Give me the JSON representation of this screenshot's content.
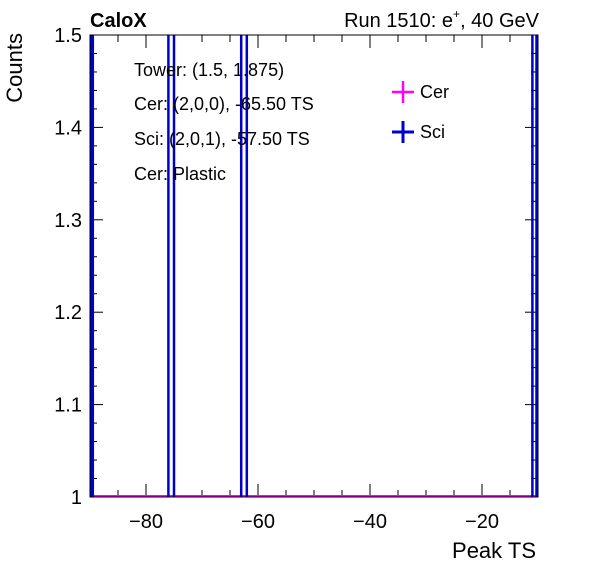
{
  "header": {
    "left_title": "CaloX",
    "right_title_prefix": "Run 1510: e",
    "right_title_sup": "+",
    "right_title_suffix": ", 40 GeV"
  },
  "annotations": [
    "Tower: (1.5, 1.875)",
    "Cer: (2,0,0), -65.50 TS",
    "Sci: (2,0,1), -57.50 TS",
    "Cer: Plastic"
  ],
  "chart_data": {
    "type": "bar",
    "title": "",
    "xlabel": "Peak TS",
    "ylabel": "Counts",
    "xlim": [
      -90,
      -10
    ],
    "ylim": [
      1,
      1.5
    ],
    "xticks": [
      -80,
      -60,
      -40,
      -20
    ],
    "xtick_labels": [
      "−80",
      "−60",
      "−40",
      "−20"
    ],
    "yticks": [
      1,
      1.1,
      1.2,
      1.3,
      1.4,
      1.5
    ],
    "ytick_labels": [
      "1",
      "1.1",
      "1.2",
      "1.3",
      "1.4",
      "1.5"
    ],
    "grid": false,
    "legend_position": "top-right",
    "series": [
      {
        "name": "Cer",
        "color": "#ff00ff",
        "bins": [],
        "baseline": 1
      },
      {
        "name": "Sci",
        "color": "#0000cc",
        "bins": [
          {
            "low": -90,
            "high": -89.5,
            "value": 2
          },
          {
            "low": -76,
            "high": -75,
            "value": 2
          },
          {
            "low": -63,
            "high": -62,
            "value": 2
          },
          {
            "low": -11,
            "high": -10,
            "value": 2
          }
        ],
        "baseline": 1
      }
    ]
  }
}
